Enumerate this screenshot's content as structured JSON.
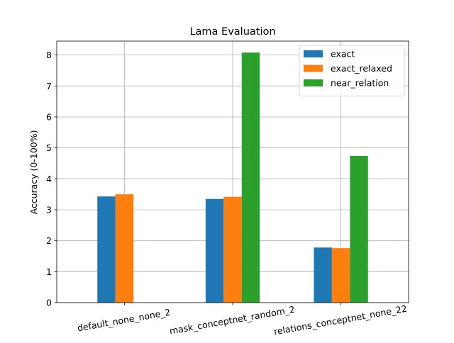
{
  "chart_data": {
    "type": "bar",
    "title": "Lama Evaluation",
    "xlabel": "",
    "ylabel": "Accuracy (0-100%)",
    "categories": [
      "default_none_none_2",
      "mask_conceptnet_random_2",
      "relations_conceptnet_none_22"
    ],
    "series": [
      {
        "name": "exact",
        "color": "#1f77b4",
        "values": [
          3.43,
          3.35,
          1.78
        ]
      },
      {
        "name": "exact_relaxed",
        "color": "#ff7f0e",
        "values": [
          3.5,
          3.42,
          1.76
        ]
      },
      {
        "name": "near_relation",
        "color": "#2ca02c",
        "values": [
          0,
          8.08,
          4.74
        ]
      }
    ],
    "ylim": [
      0,
      8.45
    ],
    "yticks": [
      0,
      1,
      2,
      3,
      4,
      5,
      6,
      7,
      8
    ],
    "grid": true,
    "legend_position": "top-right"
  }
}
